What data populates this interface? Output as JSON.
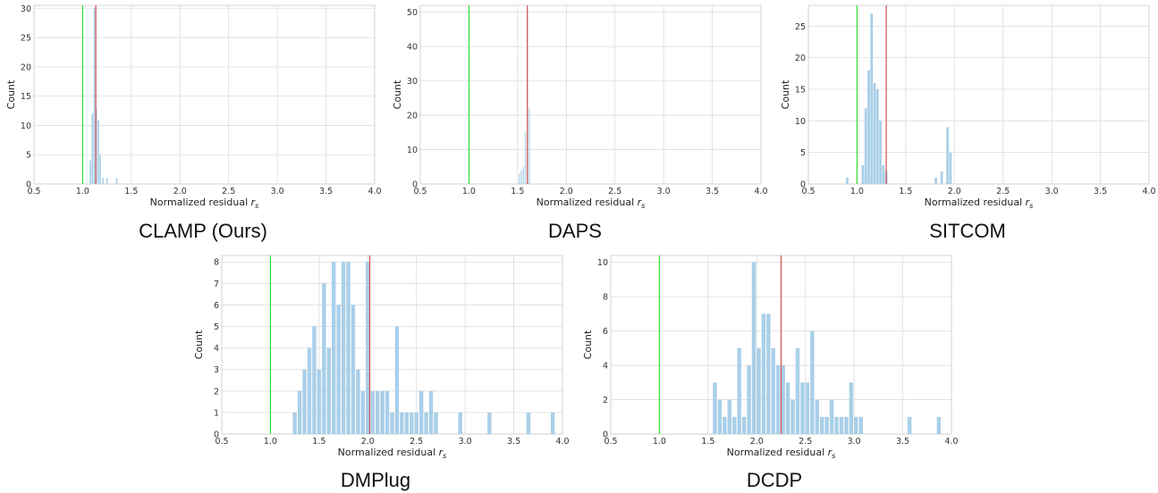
{
  "captions": [
    "CLAMP (Ours)",
    "DAPS",
    "SITCOM",
    "DMPlug",
    "DCDP"
  ],
  "colors": {
    "bar": "#a9cfe8",
    "green_line": "#33dd33",
    "red_line": "#d05050",
    "grid": "#dddddd",
    "axes": "#cccccc"
  },
  "chart_data": [
    {
      "type": "bar",
      "caption": "CLAMP (Ours)",
      "xlabel": "Normalized residual r_s",
      "ylabel": "Count",
      "xlim": [
        0.5,
        4.0
      ],
      "ylim": [
        0,
        30.5
      ],
      "xticks": [
        "0.5",
        "1.0",
        "1.5",
        "2.0",
        "2.5",
        "3.0",
        "3.5",
        "4.0"
      ],
      "yticks": [
        0,
        5,
        10,
        15,
        20,
        25,
        30
      ],
      "grid": true,
      "bin_width": 0.02,
      "bins": [
        {
          "x": 1.08,
          "count": 4
        },
        {
          "x": 1.1,
          "count": 12
        },
        {
          "x": 1.12,
          "count": 30
        },
        {
          "x": 1.14,
          "count": 13
        },
        {
          "x": 1.16,
          "count": 11
        },
        {
          "x": 1.18,
          "count": 5
        },
        {
          "x": 1.21,
          "count": 1
        },
        {
          "x": 1.25,
          "count": 1
        },
        {
          "x": 1.35,
          "count": 1
        }
      ],
      "green_line": 1.0,
      "red_line": 1.135
    },
    {
      "type": "bar",
      "caption": "DAPS",
      "xlabel": "Normalized residual r_s",
      "ylabel": "Count",
      "xlim": [
        0.5,
        4.0
      ],
      "ylim": [
        0,
        52
      ],
      "xticks": [
        "0.5",
        "1.0",
        "1.5",
        "2.0",
        "2.5",
        "3.0",
        "3.5",
        "4.0"
      ],
      "yticks": [
        0,
        10,
        20,
        30,
        40,
        50
      ],
      "grid": true,
      "bin_width": 0.012,
      "bins": [
        {
          "x": 1.52,
          "count": 3
        },
        {
          "x": 1.54,
          "count": 4
        },
        {
          "x": 1.56,
          "count": 5
        },
        {
          "x": 1.58,
          "count": 15
        },
        {
          "x": 1.6,
          "count": 50
        },
        {
          "x": 1.62,
          "count": 22
        }
      ],
      "green_line": 1.0,
      "red_line": 1.6
    },
    {
      "type": "bar",
      "caption": "SITCOM",
      "xlabel": "Normalized residual r_s",
      "ylabel": "Count",
      "xlim": [
        0.5,
        4.0
      ],
      "ylim": [
        0,
        28.3
      ],
      "xticks": [
        "0.5",
        "1.0",
        "1.5",
        "2.0",
        "2.5",
        "3.0",
        "3.5",
        "4.0"
      ],
      "yticks": [
        0,
        5,
        10,
        15,
        20,
        25
      ],
      "grid": true,
      "bin_width": 0.03,
      "bins": [
        {
          "x": 0.9,
          "count": 1
        },
        {
          "x": 1.06,
          "count": 3
        },
        {
          "x": 1.09,
          "count": 12
        },
        {
          "x": 1.12,
          "count": 18
        },
        {
          "x": 1.15,
          "count": 27
        },
        {
          "x": 1.18,
          "count": 16
        },
        {
          "x": 1.21,
          "count": 15
        },
        {
          "x": 1.24,
          "count": 10
        },
        {
          "x": 1.27,
          "count": 3
        },
        {
          "x": 1.3,
          "count": 2
        },
        {
          "x": 1.81,
          "count": 1
        },
        {
          "x": 1.87,
          "count": 2
        },
        {
          "x": 1.93,
          "count": 9
        },
        {
          "x": 1.96,
          "count": 5
        }
      ],
      "green_line": 1.0,
      "red_line": 1.3
    },
    {
      "type": "bar",
      "caption": "DMPlug",
      "xlabel": "Normalized residual r_s",
      "ylabel": "Count",
      "xlim": [
        0.5,
        4.0
      ],
      "ylim": [
        0,
        8.3
      ],
      "xticks": [
        "0.5",
        "1.0",
        "1.5",
        "2.0",
        "2.5",
        "3.0",
        "3.5",
        "4.0"
      ],
      "yticks": [
        0,
        1,
        2,
        3,
        4,
        5,
        6,
        7,
        8
      ],
      "grid": true,
      "bin_width": 0.045,
      "bins": [
        {
          "x": 1.25,
          "count": 1
        },
        {
          "x": 1.3,
          "count": 2
        },
        {
          "x": 1.35,
          "count": 3
        },
        {
          "x": 1.4,
          "count": 4
        },
        {
          "x": 1.45,
          "count": 5
        },
        {
          "x": 1.5,
          "count": 3
        },
        {
          "x": 1.55,
          "count": 7
        },
        {
          "x": 1.6,
          "count": 4
        },
        {
          "x": 1.65,
          "count": 8
        },
        {
          "x": 1.7,
          "count": 6
        },
        {
          "x": 1.75,
          "count": 8
        },
        {
          "x": 1.8,
          "count": 8
        },
        {
          "x": 1.85,
          "count": 6
        },
        {
          "x": 1.9,
          "count": 3
        },
        {
          "x": 1.95,
          "count": 2
        },
        {
          "x": 2.0,
          "count": 8
        },
        {
          "x": 2.05,
          "count": 2
        },
        {
          "x": 2.1,
          "count": 2
        },
        {
          "x": 2.15,
          "count": 2
        },
        {
          "x": 2.2,
          "count": 2
        },
        {
          "x": 2.25,
          "count": 1
        },
        {
          "x": 2.3,
          "count": 5
        },
        {
          "x": 2.35,
          "count": 1
        },
        {
          "x": 2.4,
          "count": 1
        },
        {
          "x": 2.45,
          "count": 1
        },
        {
          "x": 2.5,
          "count": 1
        },
        {
          "x": 2.55,
          "count": 2
        },
        {
          "x": 2.6,
          "count": 1
        },
        {
          "x": 2.65,
          "count": 2
        },
        {
          "x": 2.7,
          "count": 1
        },
        {
          "x": 2.95,
          "count": 1
        },
        {
          "x": 3.25,
          "count": 1
        },
        {
          "x": 3.65,
          "count": 1
        },
        {
          "x": 3.9,
          "count": 1
        }
      ],
      "green_line": 1.0,
      "red_line": 2.02
    },
    {
      "type": "bar",
      "caption": "DCDP",
      "xlabel": "Normalized residual r_s",
      "ylabel": "Count",
      "xlim": [
        0.5,
        4.0
      ],
      "ylim": [
        0,
        10.4
      ],
      "xticks": [
        "0.5",
        "1.0",
        "1.5",
        "2.0",
        "2.5",
        "3.0",
        "3.5",
        "4.0"
      ],
      "yticks": [
        0,
        2,
        4,
        6,
        8,
        10
      ],
      "grid": true,
      "bin_width": 0.045,
      "bins": [
        {
          "x": 1.57,
          "count": 3
        },
        {
          "x": 1.62,
          "count": 2
        },
        {
          "x": 1.67,
          "count": 1
        },
        {
          "x": 1.72,
          "count": 2
        },
        {
          "x": 1.77,
          "count": 1
        },
        {
          "x": 1.82,
          "count": 5
        },
        {
          "x": 1.87,
          "count": 1
        },
        {
          "x": 1.92,
          "count": 4
        },
        {
          "x": 1.97,
          "count": 10
        },
        {
          "x": 2.02,
          "count": 5
        },
        {
          "x": 2.07,
          "count": 7
        },
        {
          "x": 2.12,
          "count": 7
        },
        {
          "x": 2.17,
          "count": 5
        },
        {
          "x": 2.22,
          "count": 4
        },
        {
          "x": 2.27,
          "count": 4
        },
        {
          "x": 2.32,
          "count": 3
        },
        {
          "x": 2.37,
          "count": 2
        },
        {
          "x": 2.42,
          "count": 5
        },
        {
          "x": 2.47,
          "count": 3
        },
        {
          "x": 2.52,
          "count": 3
        },
        {
          "x": 2.57,
          "count": 6
        },
        {
          "x": 2.62,
          "count": 2
        },
        {
          "x": 2.67,
          "count": 1
        },
        {
          "x": 2.72,
          "count": 1
        },
        {
          "x": 2.77,
          "count": 2
        },
        {
          "x": 2.82,
          "count": 1
        },
        {
          "x": 2.87,
          "count": 1
        },
        {
          "x": 2.92,
          "count": 1
        },
        {
          "x": 2.97,
          "count": 3
        },
        {
          "x": 3.02,
          "count": 1
        },
        {
          "x": 3.07,
          "count": 1
        },
        {
          "x": 3.57,
          "count": 1
        },
        {
          "x": 3.87,
          "count": 1
        }
      ],
      "green_line": 1.0,
      "red_line": 2.25
    }
  ]
}
